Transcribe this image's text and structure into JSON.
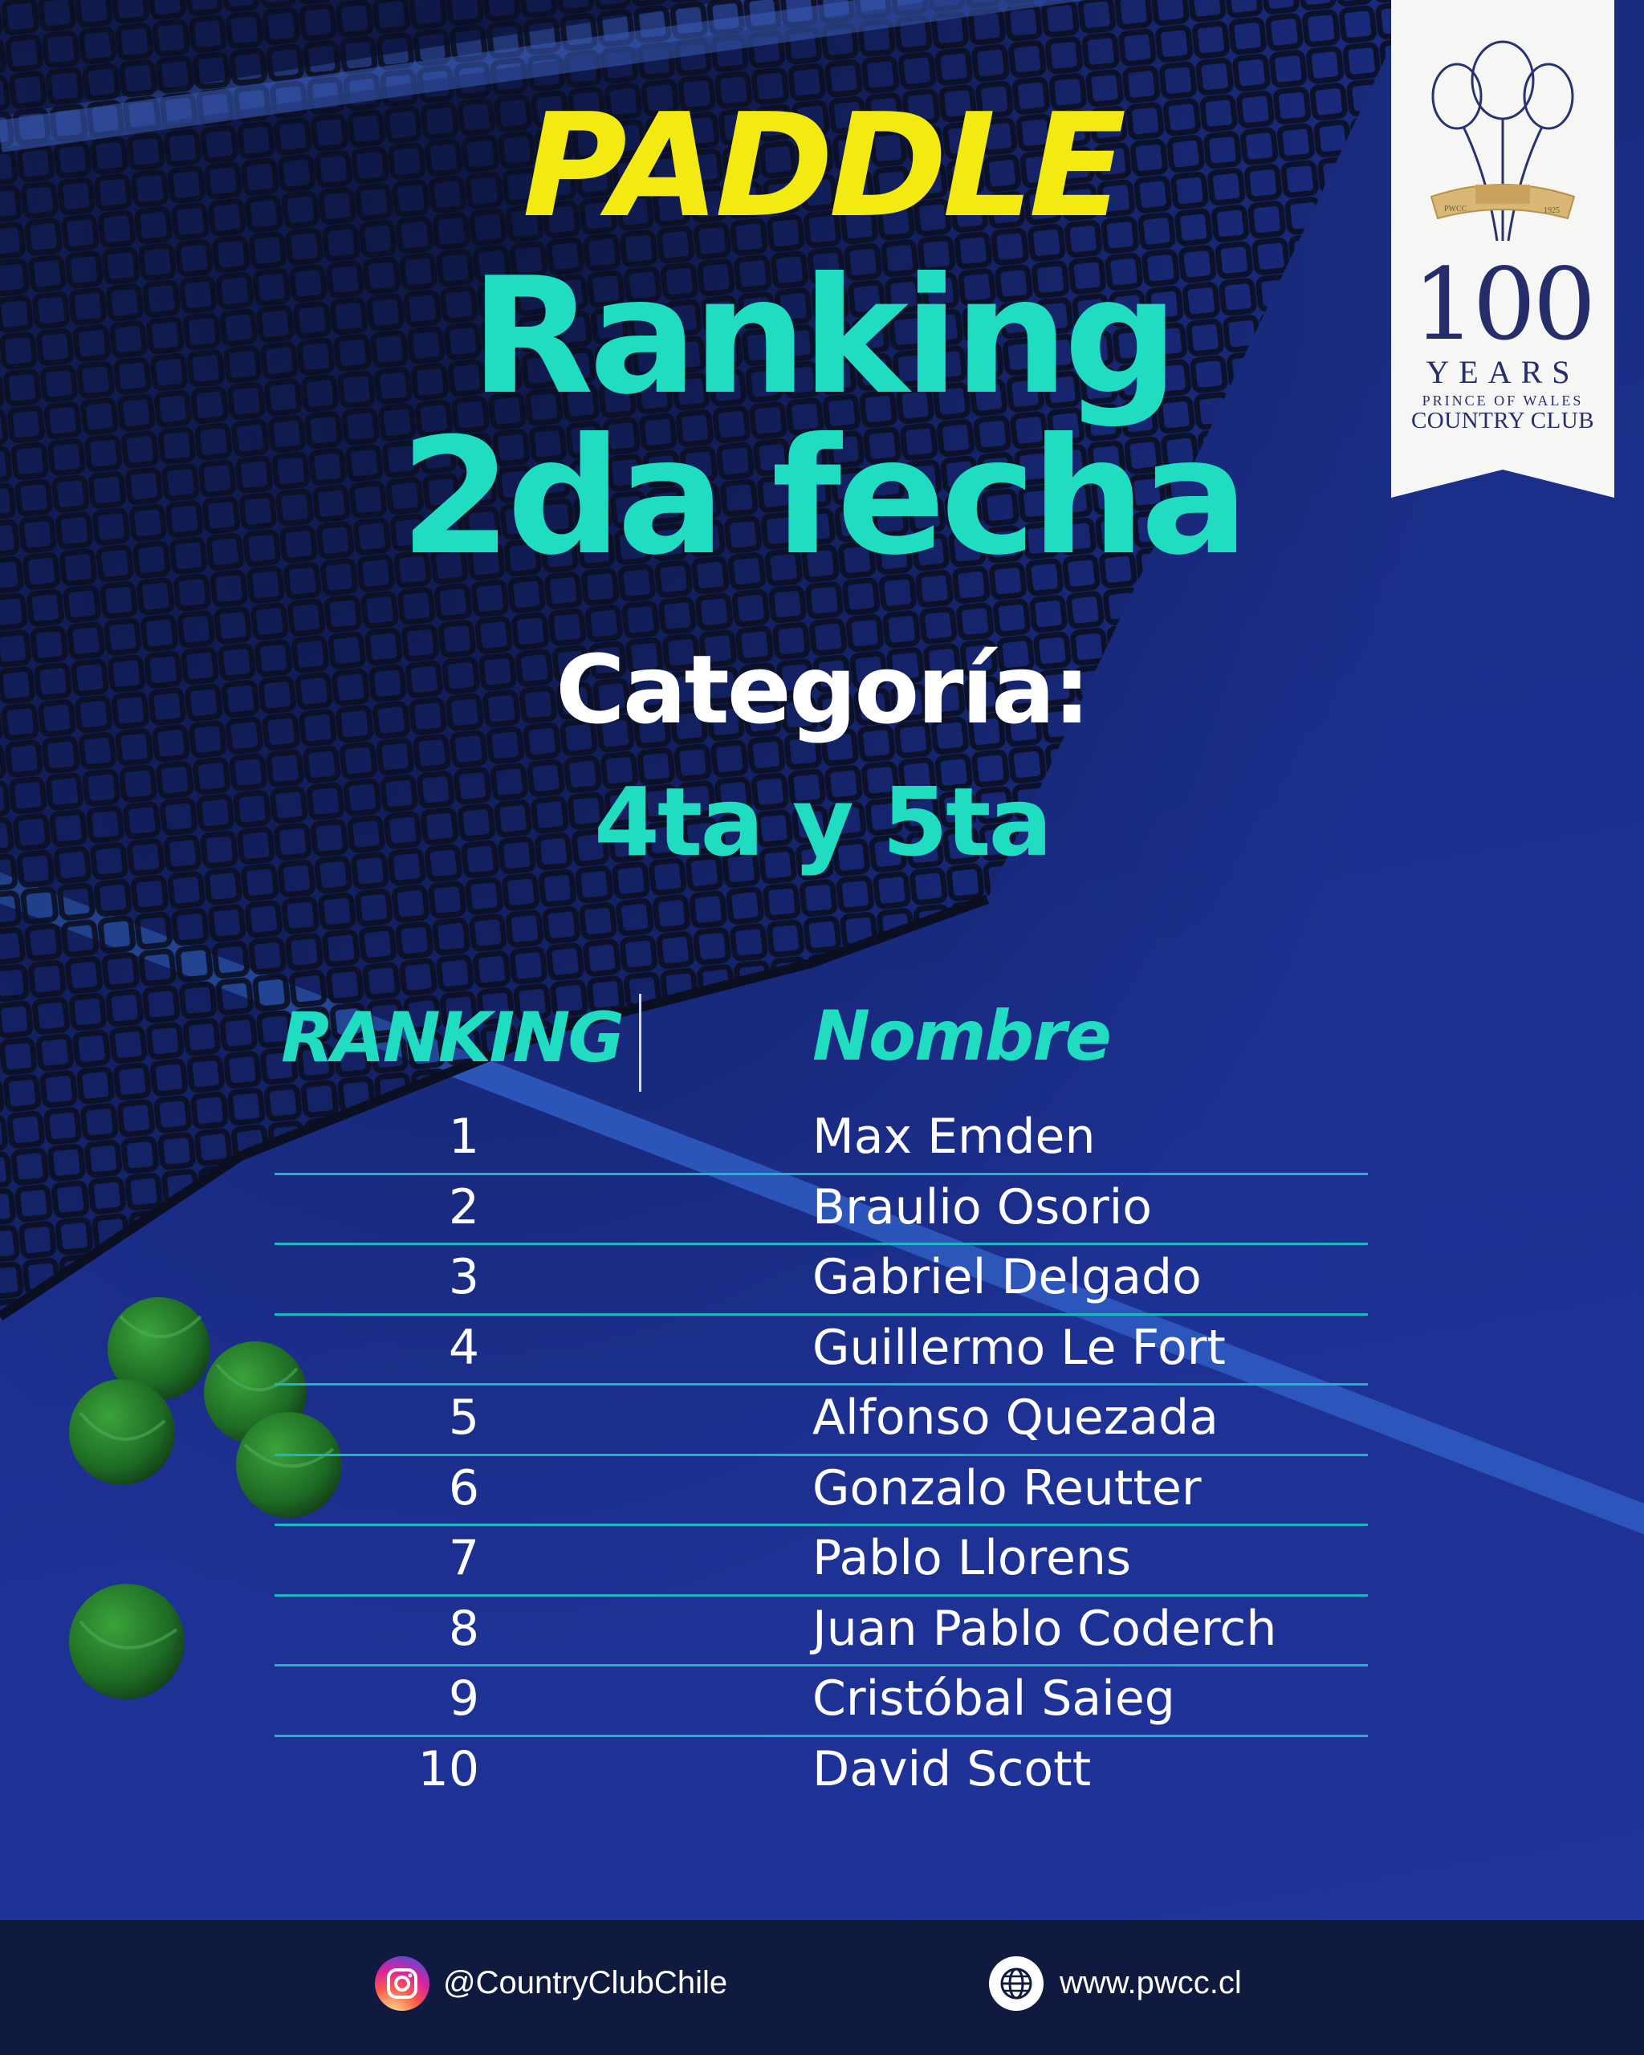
{
  "title": {
    "line1": "PADDLE",
    "line2": "Ranking",
    "line3": "2da fecha"
  },
  "category": {
    "label": "Categoría:",
    "value": "4ta y 5ta"
  },
  "table": {
    "headers": {
      "rank": "RANKING",
      "name": "Nombre"
    },
    "rows": [
      {
        "rank": "1",
        "name": "Max Emden"
      },
      {
        "rank": "2",
        "name": "Braulio Osorio"
      },
      {
        "rank": "3",
        "name": "Gabriel Delgado"
      },
      {
        "rank": "4",
        "name": "Guillermo Le Fort"
      },
      {
        "rank": "5",
        "name": "Alfonso Quezada"
      },
      {
        "rank": "6",
        "name": "Gonzalo Reutter"
      },
      {
        "rank": "7",
        "name": "Pablo Llorens"
      },
      {
        "rank": "8",
        "name": "Juan Pablo Coderch"
      },
      {
        "rank": "9",
        "name": "Cristóbal Saieg"
      },
      {
        "rank": "10",
        "name": "David Scott"
      }
    ]
  },
  "badge": {
    "emblem_left": "PWCC",
    "emblem_right": "1925",
    "number": "100",
    "years": "YEARS",
    "prince": "PRINCE OF WALES",
    "club": "COUNTRY CLUB"
  },
  "footer": {
    "instagram": "@CountryClubChile",
    "website": "www.pwcc.cl",
    "icons": [
      "instagram-icon",
      "globe-icon"
    ]
  },
  "colors": {
    "yellow": "#f2ea11",
    "teal": "#20dcc0",
    "court": "#1b2f8e",
    "footer": "#0f1a3e"
  }
}
